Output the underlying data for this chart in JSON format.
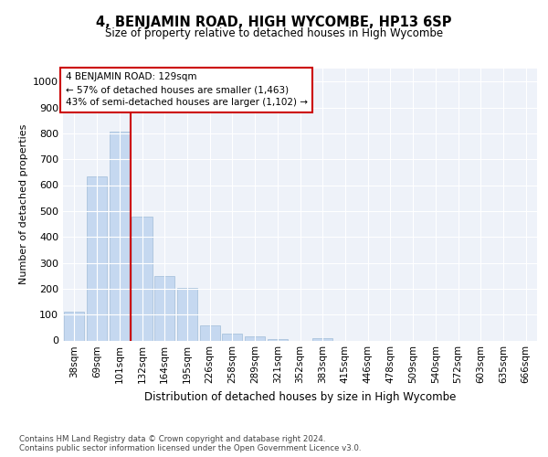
{
  "title": "4, BENJAMIN ROAD, HIGH WYCOMBE, HP13 6SP",
  "subtitle": "Size of property relative to detached houses in High Wycombe",
  "xlabel": "Distribution of detached houses by size in High Wycombe",
  "ylabel": "Number of detached properties",
  "categories": [
    "38sqm",
    "69sqm",
    "101sqm",
    "132sqm",
    "164sqm",
    "195sqm",
    "226sqm",
    "258sqm",
    "289sqm",
    "321sqm",
    "352sqm",
    "383sqm",
    "415sqm",
    "446sqm",
    "478sqm",
    "509sqm",
    "540sqm",
    "572sqm",
    "603sqm",
    "635sqm",
    "666sqm"
  ],
  "values": [
    110,
    632,
    805,
    480,
    250,
    202,
    60,
    25,
    17,
    5,
    0,
    10,
    0,
    0,
    0,
    0,
    0,
    0,
    0,
    0,
    0
  ],
  "bar_color": "#c5d8f0",
  "bar_edge_color": "#a0bcd8",
  "vline_color": "#cc0000",
  "annotation_text": "4 BENJAMIN ROAD: 129sqm\n← 57% of detached houses are smaller (1,463)\n43% of semi-detached houses are larger (1,102) →",
  "annotation_box_color": "#ffffff",
  "annotation_box_edge": "#cc0000",
  "ylim": [
    0,
    1050
  ],
  "yticks": [
    0,
    100,
    200,
    300,
    400,
    500,
    600,
    700,
    800,
    900,
    1000
  ],
  "background_color": "#eef2f9",
  "footer_line1": "Contains HM Land Registry data © Crown copyright and database right 2024.",
  "footer_line2": "Contains public sector information licensed under the Open Government Licence v3.0."
}
